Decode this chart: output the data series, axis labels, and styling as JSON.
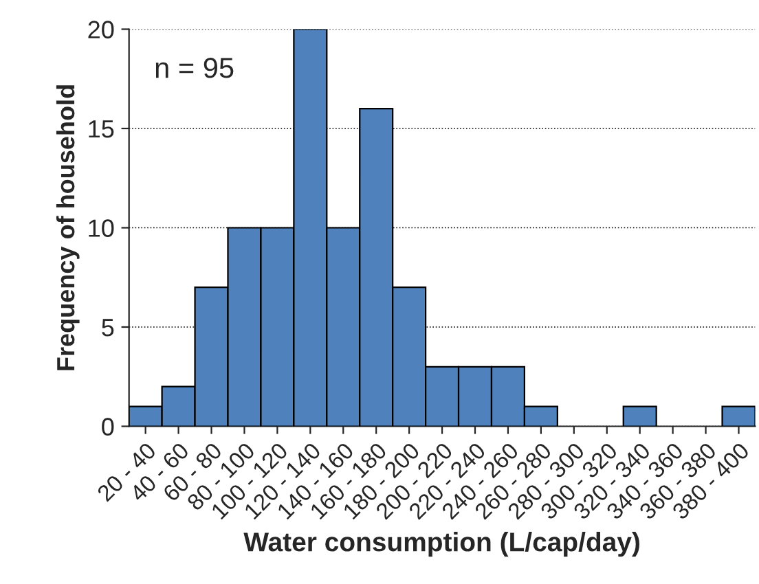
{
  "chart_data": {
    "type": "bar",
    "categories": [
      "20 - 40",
      "40 - 60",
      "60 - 80",
      "80 - 100",
      "100 - 120",
      "120 - 140",
      "140 - 160",
      "160 - 180",
      "180 - 200",
      "200 - 220",
      "220 - 240",
      "240 - 260",
      "260 - 280",
      "280 - 300",
      "300 - 320",
      "320 - 340",
      "340 - 360",
      "360 - 380",
      "380 - 400"
    ],
    "values": [
      1,
      2,
      7,
      10,
      10,
      20,
      10,
      16,
      7,
      3,
      3,
      3,
      1,
      0,
      0,
      1,
      0,
      0,
      1
    ],
    "color": "#4f81bd",
    "xlabel": "Water consumption (L/cap/day)",
    "ylabel": "Frequency of household",
    "ylim": [
      0,
      20
    ],
    "yticks": [
      0,
      5,
      10,
      15,
      20
    ],
    "grid": "y",
    "annotations": [
      "n = 95"
    ]
  }
}
